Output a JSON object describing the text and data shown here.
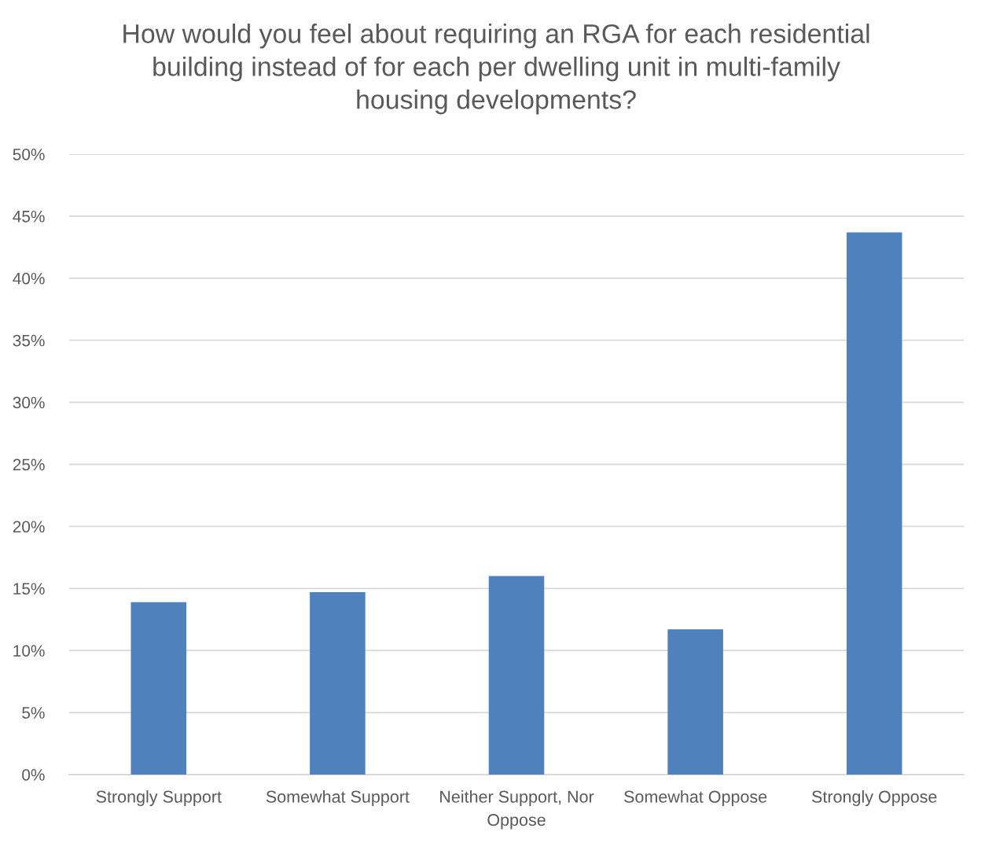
{
  "chart_data": {
    "type": "bar",
    "title": "How would you feel about requiring an RGA for each residential building instead of for each per dwelling unit in multi-family housing developments?",
    "categories": [
      "Strongly Support",
      "Somewhat Support",
      "Neither Support, Nor Oppose",
      "Somewhat Oppose",
      "Strongly Oppose"
    ],
    "values": [
      13.9,
      14.7,
      16.0,
      11.7,
      43.7
    ],
    "color": "#4f81bd",
    "ylim": [
      0,
      50
    ],
    "yticks": [
      {
        "value": 0,
        "label": "0%"
      },
      {
        "value": 5,
        "label": "5%"
      },
      {
        "value": 10,
        "label": "10%"
      },
      {
        "value": 15,
        "label": "15%"
      },
      {
        "value": 20,
        "label": "20%"
      },
      {
        "value": 25,
        "label": "25%"
      },
      {
        "value": 30,
        "label": "30%"
      },
      {
        "value": 35,
        "label": "35%"
      },
      {
        "value": 40,
        "label": "40%"
      },
      {
        "value": 45,
        "label": "45%"
      },
      {
        "value": 50,
        "label": "50%"
      }
    ],
    "grid": "y"
  }
}
